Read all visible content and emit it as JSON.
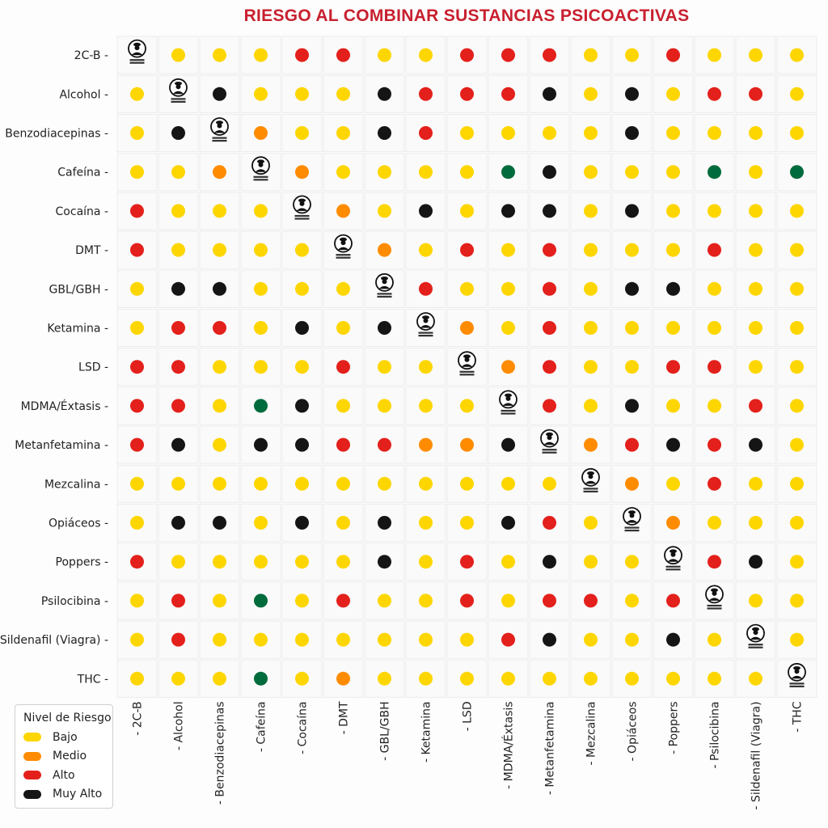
{
  "chart_data": {
    "type": "heatmap",
    "title": "RIESGO AL COMBINAR SUSTANCIAS PSICOACTIVAS",
    "substances": [
      "2C-B",
      "Alcohol",
      "Benzodiacepinas",
      "Cafeína",
      "Cocaína",
      "DMT",
      "GBL/GBH",
      "Ketamina",
      "LSD",
      "MDMA/Éxtasis",
      "Metanfetamina",
      "Mezcalina",
      "Opiáceos",
      "Poppers",
      "Psilocibina",
      "Sildenafil (Viagra)",
      "THC"
    ],
    "value_codes": {
      "Y": "Bajo",
      "O": "Medio",
      "R": "Alto",
      "K": "Muy Alto",
      "G": "Verde (sin leyenda)",
      "S": "misma sustancia (logo)"
    },
    "matrix": [
      [
        "S",
        "Y",
        "Y",
        "Y",
        "R",
        "R",
        "Y",
        "Y",
        "R",
        "R",
        "R",
        "Y",
        "Y",
        "R",
        "Y",
        "Y",
        "Y"
      ],
      [
        "Y",
        "S",
        "K",
        "Y",
        "Y",
        "Y",
        "K",
        "R",
        "R",
        "R",
        "K",
        "Y",
        "K",
        "Y",
        "R",
        "R",
        "Y"
      ],
      [
        "Y",
        "K",
        "S",
        "O",
        "Y",
        "Y",
        "K",
        "R",
        "Y",
        "Y",
        "Y",
        "Y",
        "K",
        "Y",
        "Y",
        "Y",
        "Y"
      ],
      [
        "Y",
        "Y",
        "O",
        "S",
        "O",
        "Y",
        "Y",
        "Y",
        "Y",
        "G",
        "K",
        "Y",
        "Y",
        "Y",
        "G",
        "Y",
        "G"
      ],
      [
        "R",
        "Y",
        "Y",
        "Y",
        "S",
        "O",
        "Y",
        "K",
        "Y",
        "K",
        "K",
        "Y",
        "K",
        "Y",
        "Y",
        "Y",
        "Y"
      ],
      [
        "R",
        "Y",
        "Y",
        "Y",
        "Y",
        "S",
        "O",
        "Y",
        "R",
        "Y",
        "R",
        "Y",
        "Y",
        "Y",
        "R",
        "Y",
        "Y"
      ],
      [
        "Y",
        "K",
        "K",
        "Y",
        "Y",
        "Y",
        "S",
        "R",
        "Y",
        "Y",
        "R",
        "Y",
        "K",
        "K",
        "Y",
        "Y",
        "Y"
      ],
      [
        "Y",
        "R",
        "R",
        "Y",
        "K",
        "Y",
        "K",
        "S",
        "O",
        "Y",
        "R",
        "Y",
        "Y",
        "Y",
        "Y",
        "Y",
        "Y"
      ],
      [
        "R",
        "R",
        "Y",
        "Y",
        "Y",
        "R",
        "Y",
        "Y",
        "S",
        "O",
        "R",
        "Y",
        "Y",
        "R",
        "R",
        "Y",
        "Y"
      ],
      [
        "R",
        "R",
        "Y",
        "G",
        "K",
        "Y",
        "Y",
        "Y",
        "Y",
        "S",
        "R",
        "Y",
        "K",
        "Y",
        "Y",
        "R",
        "Y"
      ],
      [
        "R",
        "K",
        "Y",
        "K",
        "K",
        "R",
        "R",
        "O",
        "O",
        "K",
        "S",
        "O",
        "R",
        "K",
        "R",
        "K",
        "Y"
      ],
      [
        "Y",
        "Y",
        "Y",
        "Y",
        "Y",
        "Y",
        "Y",
        "Y",
        "Y",
        "Y",
        "Y",
        "S",
        "O",
        "Y",
        "R",
        "Y",
        "Y"
      ],
      [
        "Y",
        "K",
        "K",
        "Y",
        "K",
        "Y",
        "K",
        "Y",
        "Y",
        "K",
        "R",
        "Y",
        "S",
        "O",
        "Y",
        "Y",
        "Y"
      ],
      [
        "R",
        "Y",
        "Y",
        "Y",
        "Y",
        "Y",
        "K",
        "Y",
        "R",
        "Y",
        "K",
        "Y",
        "Y",
        "S",
        "R",
        "K",
        "Y"
      ],
      [
        "Y",
        "R",
        "Y",
        "G",
        "Y",
        "R",
        "Y",
        "Y",
        "R",
        "Y",
        "R",
        "R",
        "Y",
        "R",
        "S",
        "Y",
        "Y"
      ],
      [
        "Y",
        "R",
        "Y",
        "Y",
        "Y",
        "Y",
        "Y",
        "Y",
        "Y",
        "R",
        "K",
        "Y",
        "Y",
        "K",
        "Y",
        "S",
        "Y"
      ],
      [
        "Y",
        "Y",
        "Y",
        "G",
        "Y",
        "O",
        "Y",
        "Y",
        "Y",
        "Y",
        "Y",
        "Y",
        "Y",
        "Y",
        "Y",
        "Y",
        "S"
      ]
    ],
    "colors": {
      "Y": "#fdd600",
      "O": "#ff8c00",
      "R": "#e3201b",
      "K": "#151515",
      "G": "#006b3c"
    },
    "legend": {
      "title": "Nivel de Riesgo",
      "placement": "bottom-left",
      "entries": [
        {
          "label": "Bajo",
          "code": "Y"
        },
        {
          "label": "Medio",
          "code": "O"
        },
        {
          "label": "Alto",
          "code": "R"
        },
        {
          "label": "Muy Alto",
          "code": "K"
        }
      ]
    },
    "grid": true
  }
}
